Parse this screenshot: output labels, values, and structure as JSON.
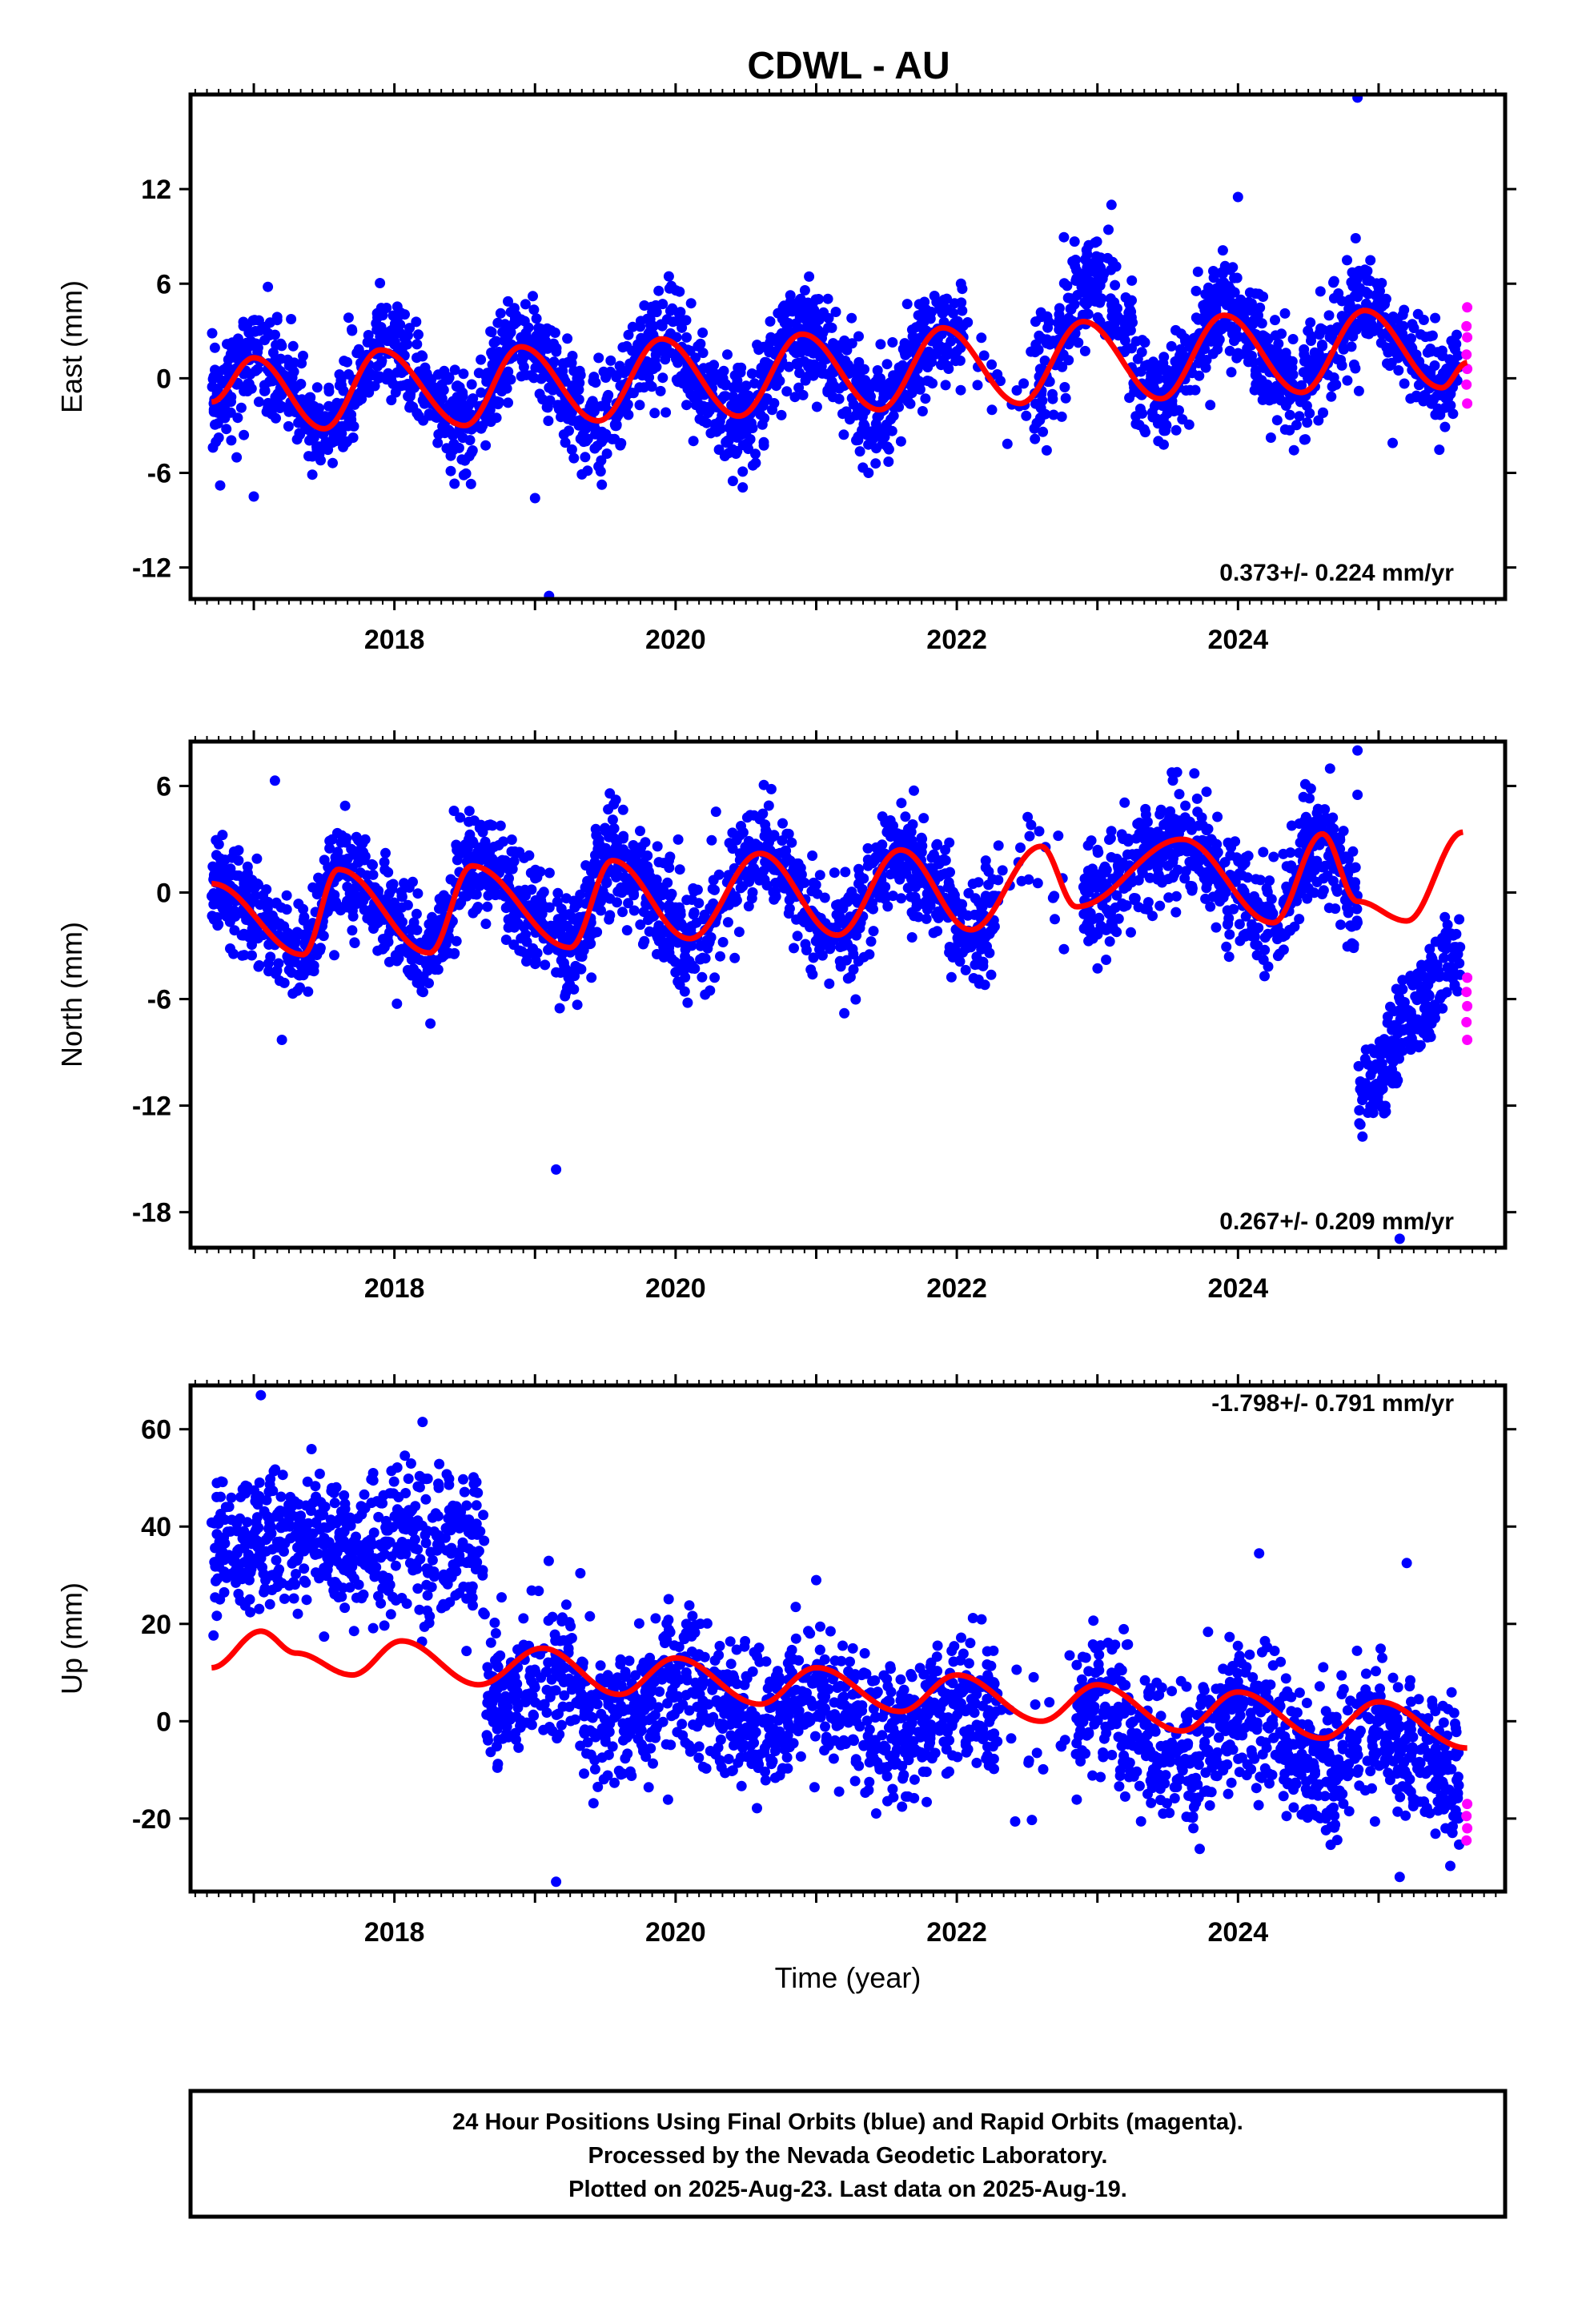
{
  "title": "CDWL - AU",
  "footer": {
    "line1": "24 Hour Positions Using Final Orbits (blue) and Rapid Orbits (magenta).",
    "line2": "Processed by the Nevada Geodetic Laboratory.",
    "line3": "Plotted on 2025-Aug-23. Last data on 2025-Aug-19."
  },
  "colors": {
    "final": "#0000ff",
    "rapid": "#ff00ff",
    "model": "#ff0000",
    "frame": "#000000"
  },
  "chart_data": [
    {
      "type": "scatter",
      "name": "east",
      "ylabel": "East (mm)",
      "xlabel": "",
      "rate_text": "0.373+/- 0.224 mm/yr",
      "xlim": [
        2016.55,
        2025.9
      ],
      "ylim": [
        -14,
        18
      ],
      "yticks": [
        -12,
        -6,
        0,
        6,
        12
      ],
      "xticks": [
        2018,
        2020,
        2022,
        2024
      ],
      "final_data_gaps": [
        [
          2022.05,
          2022.55
        ]
      ],
      "data_span": [
        2016.7,
        2025.58
      ],
      "rapid_span": [
        2025.55,
        2025.63
      ],
      "model": {
        "x": [
          2016.7,
          2017.0,
          2017.5,
          2017.9,
          2018.5,
          2018.9,
          2019.45,
          2019.9,
          2020.45,
          2020.9,
          2021.45,
          2021.9,
          2022.45,
          2022.9,
          2023.45,
          2023.9,
          2024.45,
          2024.9,
          2025.45,
          2025.63
        ],
        "y": [
          -1.5,
          1.3,
          -3.2,
          1.8,
          -3.0,
          2.0,
          -2.7,
          2.5,
          -2.4,
          2.8,
          -2.0,
          3.2,
          -1.6,
          3.6,
          -1.3,
          4.0,
          -0.9,
          4.3,
          -0.6,
          1.0
        ]
      },
      "scatter_model": {
        "segments": [
          {
            "x0": 2016.7,
            "x1": 2022.05,
            "spread": 1.6,
            "offset": 0.0
          },
          {
            "x0": 2022.55,
            "x1": 2022.9,
            "spread": 2.2,
            "offset": 0.5
          },
          {
            "x0": 2022.9,
            "x1": 2023.25,
            "spread": 1.8,
            "offset": 2.5
          },
          {
            "x0": 2023.25,
            "x1": 2025.58,
            "spread": 1.6,
            "offset": 0.3
          }
        ]
      },
      "outliers": [
        [
          2024.85,
          17.8
        ],
        [
          2019.1,
          -13.8
        ],
        [
          2019.0,
          -7.6
        ],
        [
          2017.1,
          5.8
        ],
        [
          2023.1,
          11.0
        ],
        [
          2024.0,
          11.5
        ],
        [
          2017.0,
          -7.5
        ],
        [
          2025.1,
          -4.1
        ]
      ],
      "rapid_points": [
        4.5,
        3.3,
        2.6,
        1.5,
        0.6,
        -0.4,
        -1.6
      ]
    },
    {
      "type": "scatter",
      "name": "north",
      "ylabel": "North (mm)",
      "xlabel": "",
      "rate_text": "0.267+/- 0.209 mm/yr",
      "xlim": [
        2016.55,
        2025.9
      ],
      "ylim": [
        -20,
        8.5
      ],
      "yticks": [
        -18,
        -12,
        -6,
        0,
        6
      ],
      "xticks": [
        2018,
        2020,
        2022,
        2024
      ],
      "final_data_gaps": [
        [
          2022.3,
          2022.9
        ]
      ],
      "data_span": [
        2016.7,
        2025.58
      ],
      "rapid_span": [
        2025.55,
        2025.63
      ],
      "model": {
        "x": [
          2016.7,
          2017.35,
          2017.6,
          2018.25,
          2018.55,
          2019.25,
          2019.55,
          2020.1,
          2020.6,
          2021.15,
          2021.6,
          2022.1,
          2022.6,
          2022.85,
          2023.6,
          2024.25,
          2024.6,
          2024.85,
          2025.2,
          2025.6
        ],
        "y": [
          0.5,
          -3.5,
          1.3,
          -3.4,
          1.5,
          -3.1,
          1.8,
          -2.6,
          2.2,
          -2.4,
          2.4,
          -2.1,
          2.6,
          -0.8,
          3.0,
          -1.7,
          3.3,
          -0.5,
          -1.6,
          3.4
        ]
      },
      "scatter_model": {
        "segments": [
          {
            "x0": 2016.7,
            "x1": 2022.3,
            "spread": 1.5,
            "offset": 0.0
          },
          {
            "x0": 2022.9,
            "x1": 2024.85,
            "spread": 1.5,
            "offset": 0.0
          },
          {
            "x0": 2024.85,
            "x1": 2025.58,
            "spread": 1.4,
            "offset": -12.0,
            "trend": 9.0
          }
        ]
      },
      "outliers": [
        [
          2017.15,
          6.3
        ],
        [
          2019.15,
          -15.6
        ],
        [
          2024.85,
          8.0
        ],
        [
          2024.85,
          5.5
        ],
        [
          2025.15,
          -19.5
        ],
        [
          2021.2,
          -6.8
        ],
        [
          2017.2,
          -8.3
        ],
        [
          2022.2,
          -5.2
        ]
      ],
      "rapid_points": [
        -4.8,
        -5.6,
        -6.4,
        -7.3,
        -8.3
      ]
    },
    {
      "type": "scatter",
      "name": "up",
      "ylabel": "Up (mm)",
      "xlabel": "Time (year)",
      "rate_text": "-1.798+/- 0.791 mm/yr",
      "xlim": [
        2016.55,
        2025.9
      ],
      "ylim": [
        -35,
        69
      ],
      "yticks": [
        -20,
        0,
        20,
        40,
        60
      ],
      "xticks": [
        2018,
        2020,
        2022,
        2024
      ],
      "final_data_gaps": [
        [
          2022.3,
          2022.85
        ]
      ],
      "data_span": [
        2016.7,
        2025.58
      ],
      "rapid_span": [
        2025.55,
        2025.63
      ],
      "model": {
        "x": [
          2016.7,
          2017.05,
          2017.3,
          2017.7,
          2018.05,
          2018.6,
          2019.05,
          2019.6,
          2020.0,
          2020.6,
          2021.0,
          2021.6,
          2022.0,
          2022.6,
          2023.0,
          2023.6,
          2024.0,
          2024.6,
          2025.0,
          2025.63
        ],
        "y": [
          11.0,
          18.5,
          14.0,
          9.5,
          16.5,
          7.5,
          15.0,
          5.5,
          13.0,
          3.5,
          11.0,
          2.0,
          9.5,
          0.0,
          7.5,
          -2.0,
          6.0,
          -3.5,
          4.0,
          -5.5
        ]
      },
      "scatter_model": {
        "segments": [
          {
            "x0": 2016.7,
            "x1": 2018.65,
            "spread": 7.0,
            "offset": 36.0
          },
          {
            "x0": 2018.65,
            "x1": 2022.3,
            "spread": 7.0,
            "offset": -5.0
          },
          {
            "x0": 2022.85,
            "x1": 2025.58,
            "spread": 7.0,
            "offset": -5.5
          }
        ]
      },
      "outliers": [
        [
          2017.05,
          67.0
        ],
        [
          2018.2,
          61.5
        ],
        [
          2019.15,
          -33.0
        ],
        [
          2025.15,
          -32.0
        ],
        [
          2025.2,
          32.5
        ],
        [
          2024.15,
          34.5
        ],
        [
          2021.0,
          29.0
        ]
      ],
      "rapid_points": [
        -17.0,
        -19.5,
        -22.0,
        -24.5
      ]
    }
  ]
}
